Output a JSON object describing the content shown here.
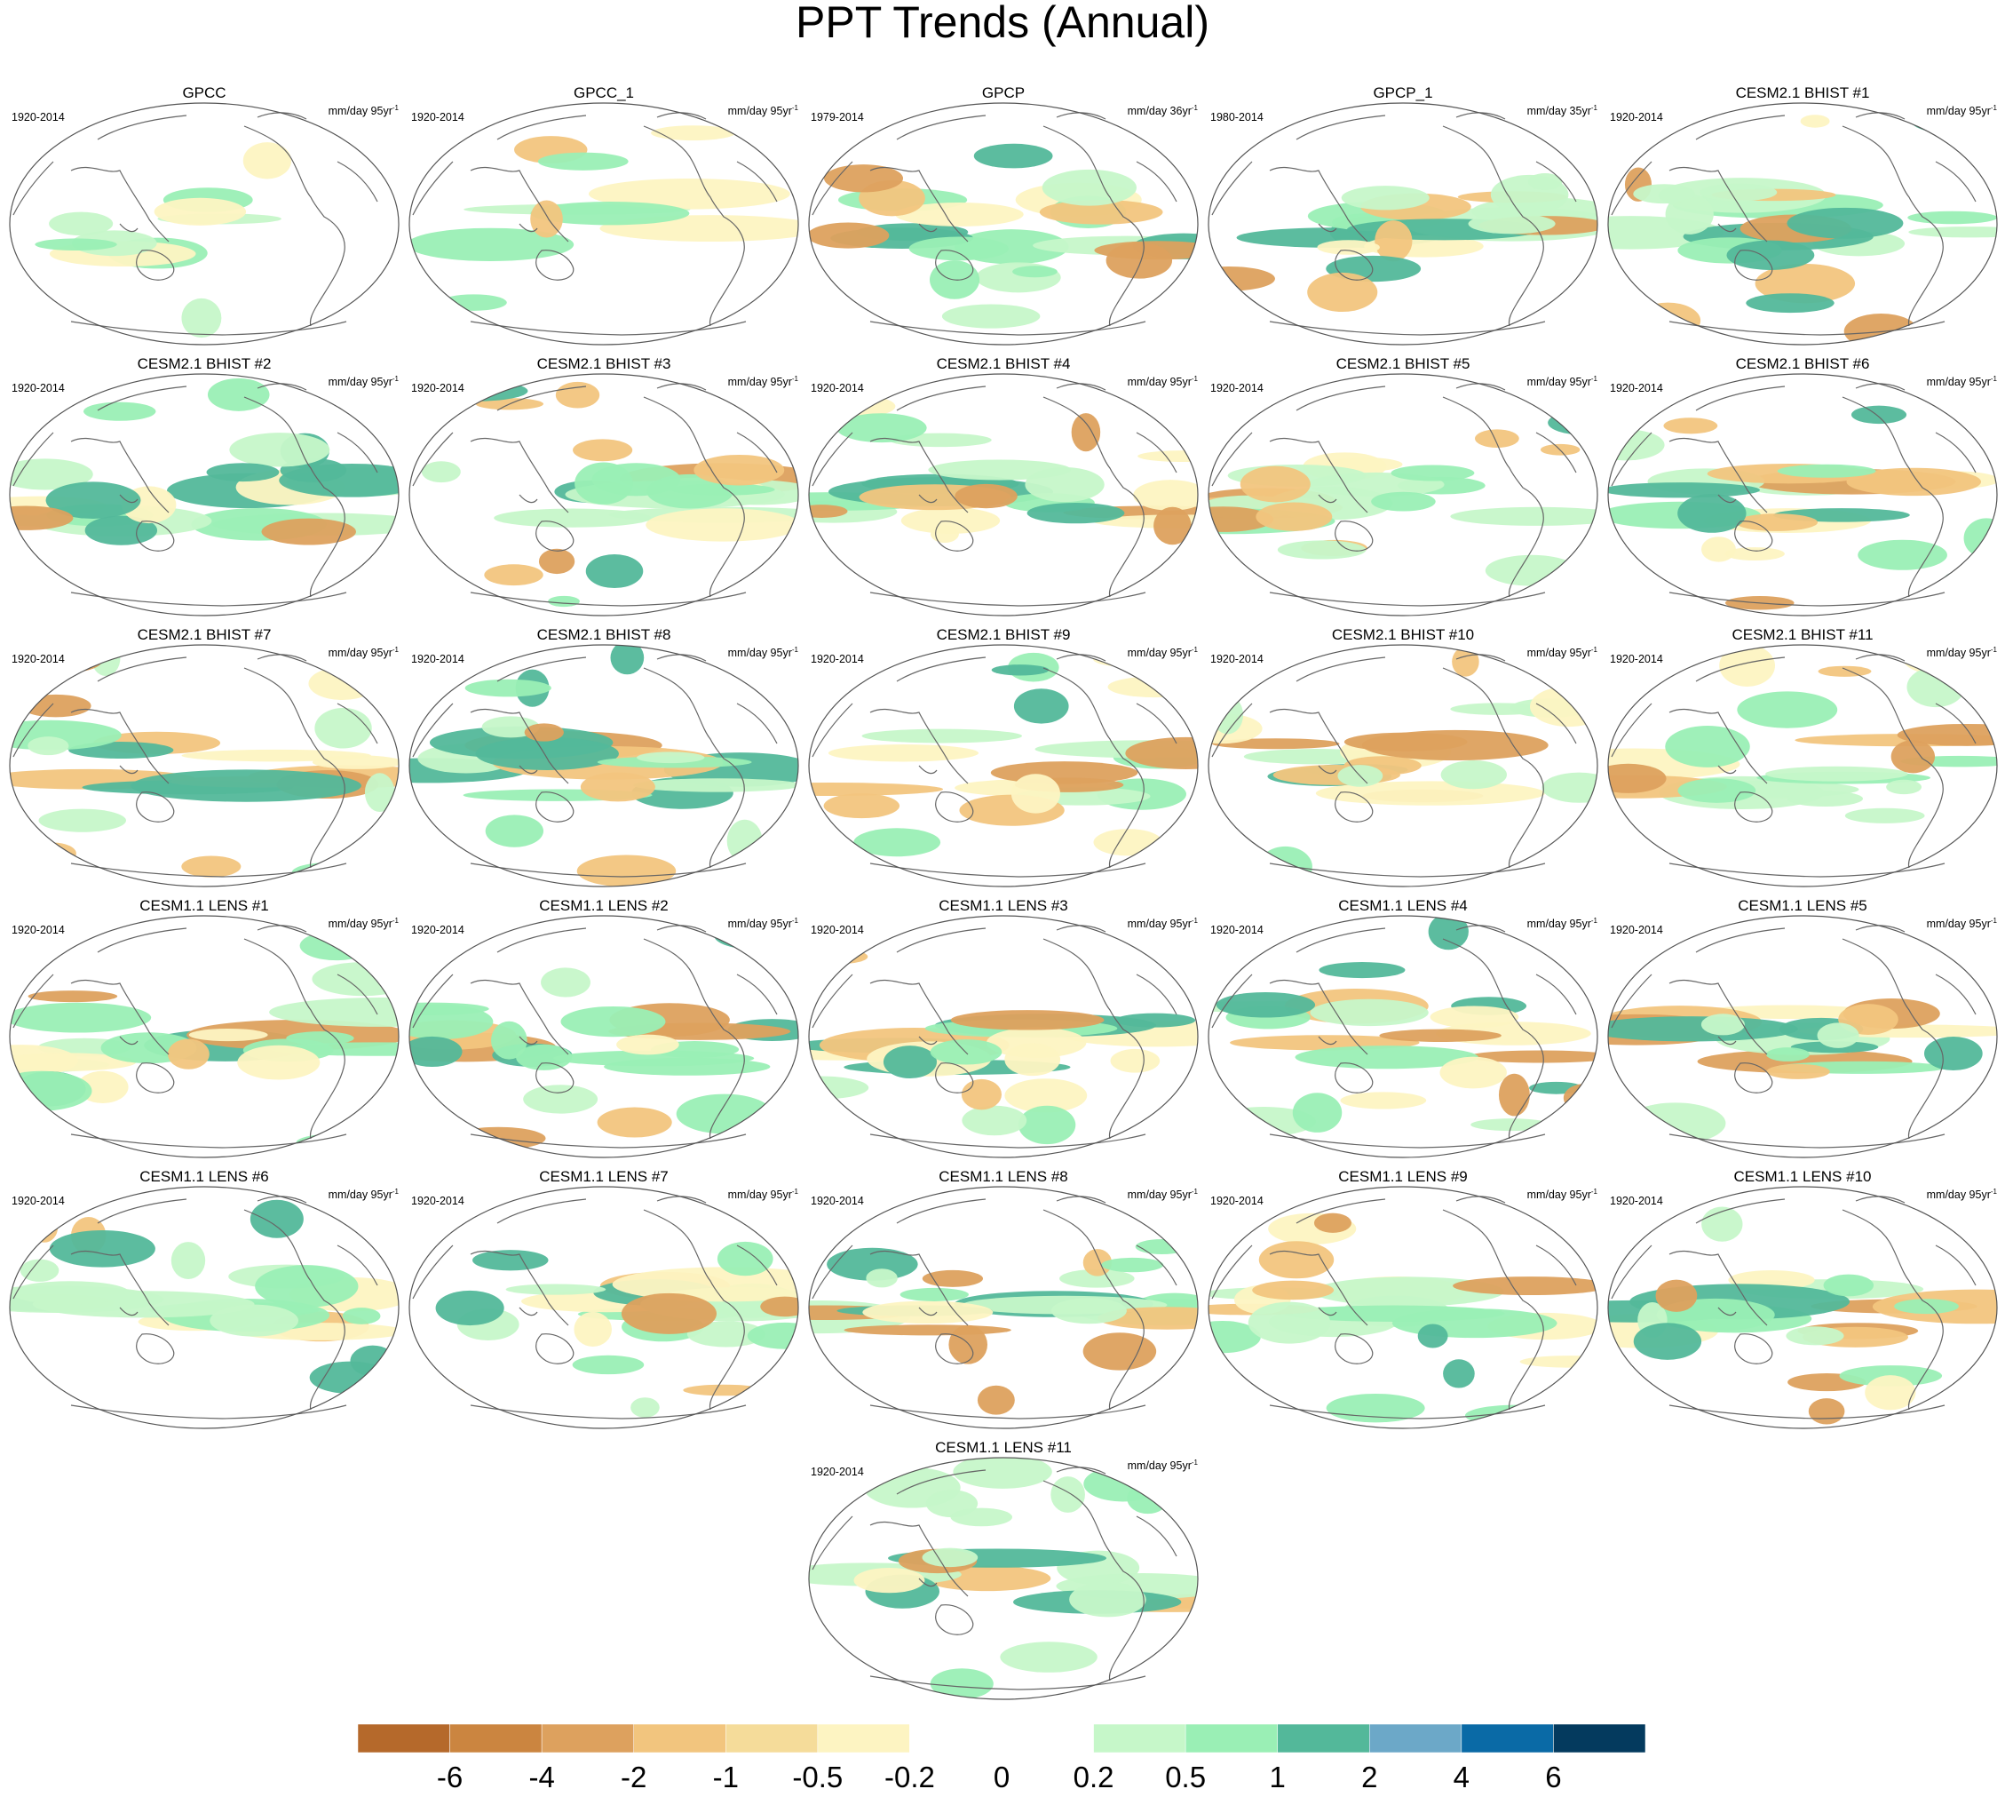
{
  "title": "PPT Trends (Annual)",
  "units_exponent": "-1",
  "panels": [
    {
      "title": "GPCC",
      "period": "1920-2014",
      "units": "mm/day 95yr"
    },
    {
      "title": "GPCC_1",
      "period": "1920-2014",
      "units": "mm/day 95yr"
    },
    {
      "title": "GPCP",
      "period": "1979-2014",
      "units": "mm/day 36yr"
    },
    {
      "title": "GPCP_1",
      "period": "1980-2014",
      "units": "mm/day 35yr"
    },
    {
      "title": "CESM2.1 BHIST #1",
      "period": "1920-2014",
      "units": "mm/day 95yr"
    },
    {
      "title": "CESM2.1 BHIST #2",
      "period": "1920-2014",
      "units": "mm/day 95yr"
    },
    {
      "title": "CESM2.1 BHIST #3",
      "period": "1920-2014",
      "units": "mm/day 95yr"
    },
    {
      "title": "CESM2.1 BHIST #4",
      "period": "1920-2014",
      "units": "mm/day 95yr"
    },
    {
      "title": "CESM2.1 BHIST #5",
      "period": "1920-2014",
      "units": "mm/day 95yr"
    },
    {
      "title": "CESM2.1 BHIST #6",
      "period": "1920-2014",
      "units": "mm/day 95yr"
    },
    {
      "title": "CESM2.1 BHIST #7",
      "period": "1920-2014",
      "units": "mm/day 95yr"
    },
    {
      "title": "CESM2.1 BHIST #8",
      "period": "1920-2014",
      "units": "mm/day 95yr"
    },
    {
      "title": "CESM2.1 BHIST #9",
      "period": "1920-2014",
      "units": "mm/day 95yr"
    },
    {
      "title": "CESM2.1 BHIST #10",
      "period": "1920-2014",
      "units": "mm/day 95yr"
    },
    {
      "title": "CESM2.1 BHIST #11",
      "period": "1920-2014",
      "units": "mm/day 95yr"
    },
    {
      "title": "CESM1.1 LENS #1",
      "period": "1920-2014",
      "units": "mm/day 95yr"
    },
    {
      "title": "CESM1.1 LENS #2",
      "period": "1920-2014",
      "units": "mm/day 95yr"
    },
    {
      "title": "CESM1.1 LENS #3",
      "period": "1920-2014",
      "units": "mm/day 95yr"
    },
    {
      "title": "CESM1.1 LENS #4",
      "period": "1920-2014",
      "units": "mm/day 95yr"
    },
    {
      "title": "CESM1.1 LENS #5",
      "period": "1920-2014",
      "units": "mm/day 95yr"
    },
    {
      "title": "CESM1.1 LENS #6",
      "period": "1920-2014",
      "units": "mm/day 95yr"
    },
    {
      "title": "CESM1.1 LENS #7",
      "period": "1920-2014",
      "units": "mm/day 95yr"
    },
    {
      "title": "CESM1.1 LENS #8",
      "period": "1920-2014",
      "units": "mm/day 95yr"
    },
    {
      "title": "CESM1.1 LENS #9",
      "period": "1920-2014",
      "units": "mm/day 95yr"
    },
    {
      "title": "CESM1.1 LENS #10",
      "period": "1920-2014",
      "units": "mm/day 95yr"
    },
    {
      "title": "CESM1.1 LENS #11",
      "period": "1920-2014",
      "units": "mm/day 95yr"
    }
  ],
  "colorbar": {
    "colors": [
      "#b5692b",
      "#cb8540",
      "#dda15e",
      "#f2c57e",
      "#f5dc9a",
      "#fdf4c2",
      "#ffffff",
      "#ffffff",
      "#c6f7c9",
      "#9aefb5",
      "#53b89a",
      "#6ca8c8",
      "#0a6aa6",
      "#043a5e"
    ],
    "labels": [
      -6,
      -4,
      -2,
      -1,
      -0.5,
      -0.2,
      0,
      0.2,
      0.5,
      1,
      2,
      4,
      6
    ]
  }
}
